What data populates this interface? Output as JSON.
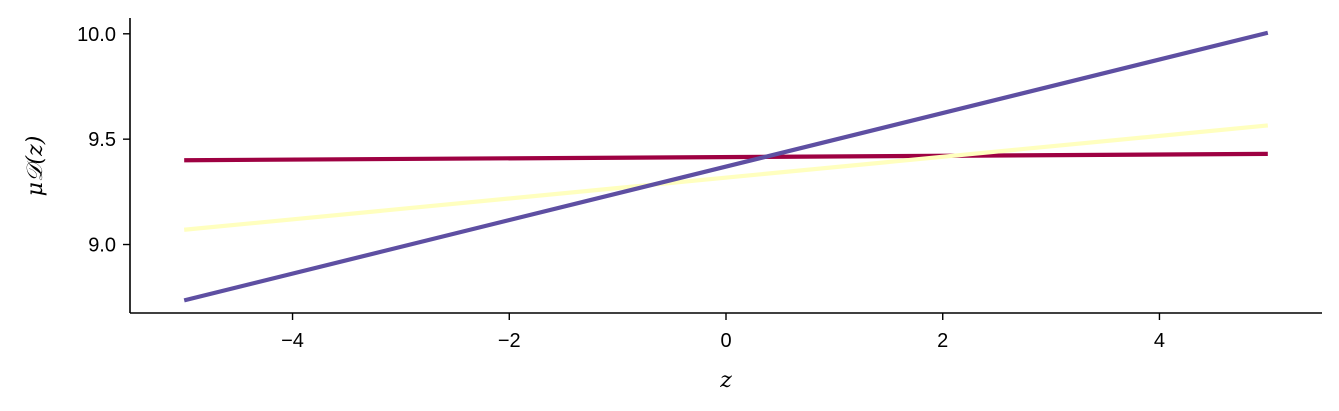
{
  "chart_data": {
    "type": "line",
    "title": "",
    "xlabel": "z",
    "ylabel": "μ𝒟(z)",
    "xlim": [
      -5.5,
      5.5
    ],
    "ylim": [
      8.675,
      10.075
    ],
    "xticks": [
      -4,
      -2,
      0,
      2,
      4
    ],
    "xtick_labels": [
      "−4",
      "−2",
      "0",
      "2",
      "4"
    ],
    "yticks": [
      9.0,
      9.5,
      10.0
    ],
    "ytick_labels": [
      "9.0",
      "9.5",
      "10.0"
    ],
    "grid": false,
    "legend": "none",
    "series": [
      {
        "color": "#9e0142",
        "x": [
          -5,
          5
        ],
        "y": [
          9.4,
          9.43
        ]
      },
      {
        "color": "#ffffbf",
        "x": [
          -5,
          5
        ],
        "y": [
          9.07,
          9.565
        ]
      },
      {
        "color": "#5e4fa2",
        "x": [
          -5,
          5
        ],
        "y": [
          8.735,
          10.005
        ]
      }
    ]
  }
}
